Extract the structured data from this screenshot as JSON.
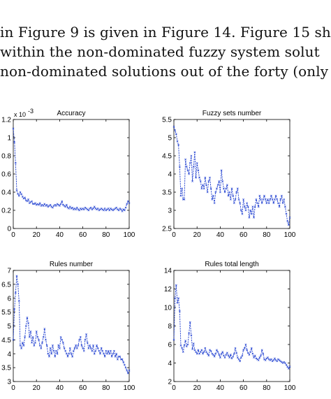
{
  "paragraph": {
    "lines": [
      "in Figure 9 is given in Figure 14.  Figure 15 sh",
      "within the non-dominated fuzzy system solut",
      "non-dominated solutions out of the forty (only"
    ]
  },
  "colors": {
    "series": "#1f3fd0",
    "axis": "#000000",
    "background": "#ffffff"
  },
  "chart_data": [
    {
      "type": "line",
      "title": "Accuracy",
      "exponent_label": "x 10",
      "exponent_power": "-3",
      "xlim": [
        0,
        100
      ],
      "ylim": [
        0,
        1.2
      ],
      "xticks": [
        0,
        20,
        40,
        60,
        80,
        100
      ],
      "xtick_labels": [
        "0",
        "20",
        "40",
        "60",
        "80",
        "100"
      ],
      "yticks": [
        0,
        0.2,
        0.4,
        0.6,
        0.8,
        1,
        1.2
      ],
      "ytick_labels": [
        "0",
        "0.2",
        "0.4",
        "0.6",
        "0.8",
        "1",
        "1.2"
      ],
      "series": [
        {
          "x": [
            0,
            1,
            2,
            3,
            4,
            5,
            6,
            7,
            8,
            9,
            10,
            11,
            12,
            13,
            14,
            15,
            16,
            17,
            18,
            19,
            20,
            21,
            22,
            23,
            24,
            25,
            26,
            27,
            28,
            29,
            30,
            31,
            32,
            33,
            34,
            35,
            36,
            37,
            38,
            39,
            40,
            41,
            42,
            43,
            44,
            45,
            46,
            47,
            48,
            49,
            50,
            51,
            52,
            53,
            54,
            55,
            56,
            57,
            58,
            59,
            60,
            61,
            62,
            63,
            64,
            65,
            66,
            67,
            68,
            69,
            70,
            71,
            72,
            73,
            74,
            75,
            76,
            77,
            78,
            79,
            80,
            81,
            82,
            83,
            84,
            85,
            86,
            87,
            88,
            89,
            90,
            91,
            92,
            93,
            94,
            95,
            96,
            97,
            98,
            99,
            100
          ],
          "y": [
            1.1,
            0.95,
            0.72,
            0.42,
            0.38,
            0.36,
            0.4,
            0.38,
            0.35,
            0.33,
            0.34,
            0.31,
            0.3,
            0.32,
            0.28,
            0.29,
            0.3,
            0.27,
            0.27,
            0.28,
            0.26,
            0.27,
            0.26,
            0.28,
            0.25,
            0.26,
            0.25,
            0.27,
            0.25,
            0.26,
            0.24,
            0.25,
            0.26,
            0.24,
            0.23,
            0.25,
            0.26,
            0.25,
            0.27,
            0.26,
            0.25,
            0.27,
            0.3,
            0.26,
            0.25,
            0.24,
            0.26,
            0.23,
            0.22,
            0.24,
            0.22,
            0.23,
            0.21,
            0.22,
            0.21,
            0.23,
            0.21,
            0.2,
            0.22,
            0.21,
            0.22,
            0.21,
            0.23,
            0.22,
            0.21,
            0.2,
            0.22,
            0.23,
            0.21,
            0.22,
            0.24,
            0.22,
            0.21,
            0.22,
            0.2,
            0.21,
            0.22,
            0.21,
            0.2,
            0.22,
            0.2,
            0.21,
            0.22,
            0.2,
            0.22,
            0.21,
            0.2,
            0.21,
            0.22,
            0.23,
            0.21,
            0.2,
            0.22,
            0.21,
            0.19,
            0.21,
            0.2,
            0.23,
            0.27,
            0.3,
            0.28
          ]
        }
      ]
    },
    {
      "type": "line",
      "title": "Fuzzy sets number",
      "xlim": [
        0,
        100
      ],
      "ylim": [
        2.5,
        5.5
      ],
      "xticks": [
        0,
        20,
        40,
        60,
        80,
        100
      ],
      "xtick_labels": [
        "0",
        "20",
        "40",
        "60",
        "80",
        "100"
      ],
      "yticks": [
        2.5,
        3,
        3.5,
        4,
        4.5,
        5,
        5.5
      ],
      "ytick_labels": [
        "2.5",
        "3",
        "3.5",
        "4",
        "4.5",
        "5",
        "5.5"
      ],
      "series": [
        {
          "x": [
            0,
            1,
            2,
            3,
            4,
            5,
            6,
            7,
            8,
            9,
            10,
            11,
            12,
            13,
            14,
            15,
            16,
            17,
            18,
            19,
            20,
            21,
            22,
            23,
            24,
            25,
            26,
            27,
            28,
            29,
            30,
            31,
            32,
            33,
            34,
            35,
            36,
            37,
            38,
            39,
            40,
            41,
            42,
            43,
            44,
            45,
            46,
            47,
            48,
            49,
            50,
            51,
            52,
            53,
            54,
            55,
            56,
            57,
            58,
            59,
            60,
            61,
            62,
            63,
            64,
            65,
            66,
            67,
            68,
            69,
            70,
            71,
            72,
            73,
            74,
            75,
            76,
            77,
            78,
            79,
            80,
            81,
            82,
            83,
            84,
            85,
            86,
            87,
            88,
            89,
            90,
            91,
            92,
            93,
            94,
            95,
            96,
            97,
            98,
            99,
            100
          ],
          "y": [
            5.3,
            5.2,
            5.1,
            4.9,
            4.8,
            4.2,
            3.4,
            3.6,
            3.3,
            3.3,
            4.4,
            4.2,
            4.1,
            4.0,
            4.3,
            4.5,
            3.8,
            4.2,
            4.6,
            3.9,
            4.3,
            4.1,
            3.9,
            3.8,
            3.6,
            3.7,
            3.6,
            3.9,
            3.7,
            3.5,
            3.8,
            3.9,
            3.6,
            3.3,
            3.4,
            3.2,
            3.5,
            3.6,
            3.7,
            3.8,
            3.5,
            4.1,
            3.8,
            3.6,
            3.5,
            3.6,
            3.7,
            3.4,
            3.5,
            3.3,
            3.6,
            3.4,
            3.2,
            3.3,
            3.5,
            3.6,
            3.3,
            3.2,
            3.0,
            2.9,
            3.3,
            3.1,
            3.0,
            3.2,
            3.1,
            2.8,
            3.0,
            2.9,
            3.1,
            2.8,
            3.1,
            3.3,
            3.2,
            3.1,
            3.4,
            3.3,
            3.2,
            3.3,
            3.4,
            3.3,
            3.2,
            3.3,
            3.2,
            3.3,
            3.4,
            3.3,
            3.2,
            3.3,
            3.4,
            3.3,
            3.2,
            3.1,
            3.3,
            3.4,
            3.2,
            3.3,
            3.1,
            2.9,
            2.7,
            2.6,
            2.8
          ]
        }
      ]
    },
    {
      "type": "line",
      "title": "Rules number",
      "xlim": [
        0,
        100
      ],
      "ylim": [
        3,
        7
      ],
      "xticks": [
        0,
        20,
        40,
        60,
        80,
        100
      ],
      "xtick_labels": [
        "0",
        "20",
        "40",
        "60",
        "80",
        "100"
      ],
      "yticks": [
        3,
        3.5,
        4,
        4.5,
        5,
        5.5,
        6,
        6.5,
        7
      ],
      "ytick_labels": [
        "3",
        "3.5",
        "4",
        "4.5",
        "5",
        "5.5",
        "6",
        "6.5",
        "7"
      ],
      "series": [
        {
          "x": [
            0,
            1,
            2,
            3,
            4,
            5,
            6,
            7,
            8,
            9,
            10,
            11,
            12,
            13,
            14,
            15,
            16,
            17,
            18,
            19,
            20,
            21,
            22,
            23,
            24,
            25,
            26,
            27,
            28,
            29,
            30,
            31,
            32,
            33,
            34,
            35,
            36,
            37,
            38,
            39,
            40,
            41,
            42,
            43,
            44,
            45,
            46,
            47,
            48,
            49,
            50,
            51,
            52,
            53,
            54,
            55,
            56,
            57,
            58,
            59,
            60,
            61,
            62,
            63,
            64,
            65,
            66,
            67,
            68,
            69,
            70,
            71,
            72,
            73,
            74,
            75,
            76,
            77,
            78,
            79,
            80,
            81,
            82,
            83,
            84,
            85,
            86,
            87,
            88,
            89,
            90,
            91,
            92,
            93,
            94,
            95,
            96,
            97,
            98,
            99,
            100
          ],
          "y": [
            4.5,
            5.6,
            6.2,
            6.8,
            6.5,
            5.9,
            4.3,
            4.2,
            4.4,
            4.3,
            4.6,
            5.0,
            5.3,
            5.1,
            4.6,
            4.8,
            4.4,
            4.6,
            4.3,
            4.4,
            4.8,
            4.6,
            4.5,
            4.3,
            4.2,
            4.4,
            4.6,
            4.9,
            4.5,
            4.3,
            4.0,
            3.9,
            4.2,
            4.0,
            4.3,
            4.1,
            3.9,
            4.1,
            4.0,
            4.3,
            4.2,
            4.6,
            4.5,
            4.4,
            4.2,
            4.1,
            4.0,
            3.9,
            4.0,
            4.2,
            4.0,
            3.9,
            4.1,
            4.2,
            4.3,
            4.2,
            4.3,
            4.5,
            4.6,
            4.3,
            4.2,
            4.1,
            4.5,
            4.7,
            4.4,
            4.2,
            4.3,
            4.2,
            4.1,
            4.3,
            4.0,
            4.1,
            4.3,
            4.2,
            4.1,
            4.0,
            4.2,
            4.1,
            4.0,
            3.9,
            4.1,
            4.0,
            4.1,
            4.0,
            4.1,
            3.9,
            4.0,
            4.1,
            3.9,
            4.0,
            3.8,
            3.9,
            3.9,
            3.8,
            3.8,
            3.7,
            3.6,
            3.5,
            3.4,
            3.3,
            3.4
          ]
        }
      ]
    },
    {
      "type": "line",
      "title": "Rules total length",
      "xlim": [
        0,
        100
      ],
      "ylim": [
        2,
        14
      ],
      "xticks": [
        0,
        20,
        40,
        60,
        80,
        100
      ],
      "xtick_labels": [
        "0",
        "20",
        "40",
        "60",
        "80",
        "100"
      ],
      "yticks": [
        2,
        4,
        6,
        8,
        10,
        12,
        14
      ],
      "ytick_labels": [
        "2",
        "4",
        "6",
        "8",
        "10",
        "12",
        "14"
      ],
      "series": [
        {
          "x": [
            0,
            1,
            2,
            3,
            4,
            5,
            6,
            7,
            8,
            9,
            10,
            11,
            12,
            13,
            14,
            15,
            16,
            17,
            18,
            19,
            20,
            21,
            22,
            23,
            24,
            25,
            26,
            27,
            28,
            29,
            30,
            31,
            32,
            33,
            34,
            35,
            36,
            37,
            38,
            39,
            40,
            41,
            42,
            43,
            44,
            45,
            46,
            47,
            48,
            49,
            50,
            51,
            52,
            53,
            54,
            55,
            56,
            57,
            58,
            59,
            60,
            61,
            62,
            63,
            64,
            65,
            66,
            67,
            68,
            69,
            70,
            71,
            72,
            73,
            74,
            75,
            76,
            77,
            78,
            79,
            80,
            81,
            82,
            83,
            84,
            85,
            86,
            87,
            88,
            89,
            90,
            91,
            92,
            93,
            94,
            95,
            96,
            97,
            98,
            99,
            100
          ],
          "y": [
            6.5,
            11.0,
            12.4,
            10.5,
            11.0,
            9.6,
            5.9,
            5.6,
            5.2,
            5.9,
            6.4,
            5.8,
            6.0,
            7.2,
            8.4,
            7.0,
            5.5,
            6.1,
            5.4,
            5.2,
            5.0,
            5.4,
            5.0,
            5.2,
            5.4,
            5.0,
            5.2,
            5.6,
            5.2,
            5.0,
            4.8,
            5.4,
            5.3,
            5.0,
            4.9,
            4.7,
            5.0,
            5.4,
            5.2,
            4.9,
            4.6,
            5.0,
            5.2,
            4.8,
            4.6,
            4.9,
            5.1,
            4.8,
            4.6,
            4.9,
            4.5,
            4.7,
            5.0,
            5.6,
            5.1,
            4.6,
            4.4,
            4.2,
            4.6,
            4.8,
            5.4,
            5.6,
            6.0,
            5.4,
            5.1,
            4.9,
            5.2,
            5.6,
            5.0,
            4.6,
            4.8,
            4.5,
            4.4,
            4.3,
            4.6,
            4.8,
            5.4,
            5.0,
            4.4,
            4.3,
            4.5,
            4.6,
            4.4,
            4.3,
            4.4,
            4.2,
            4.3,
            4.5,
            4.3,
            4.2,
            4.4,
            4.3,
            4.2,
            4.1,
            4.0,
            4.1,
            4.0,
            3.8,
            3.6,
            3.4,
            3.6
          ]
        }
      ]
    }
  ]
}
